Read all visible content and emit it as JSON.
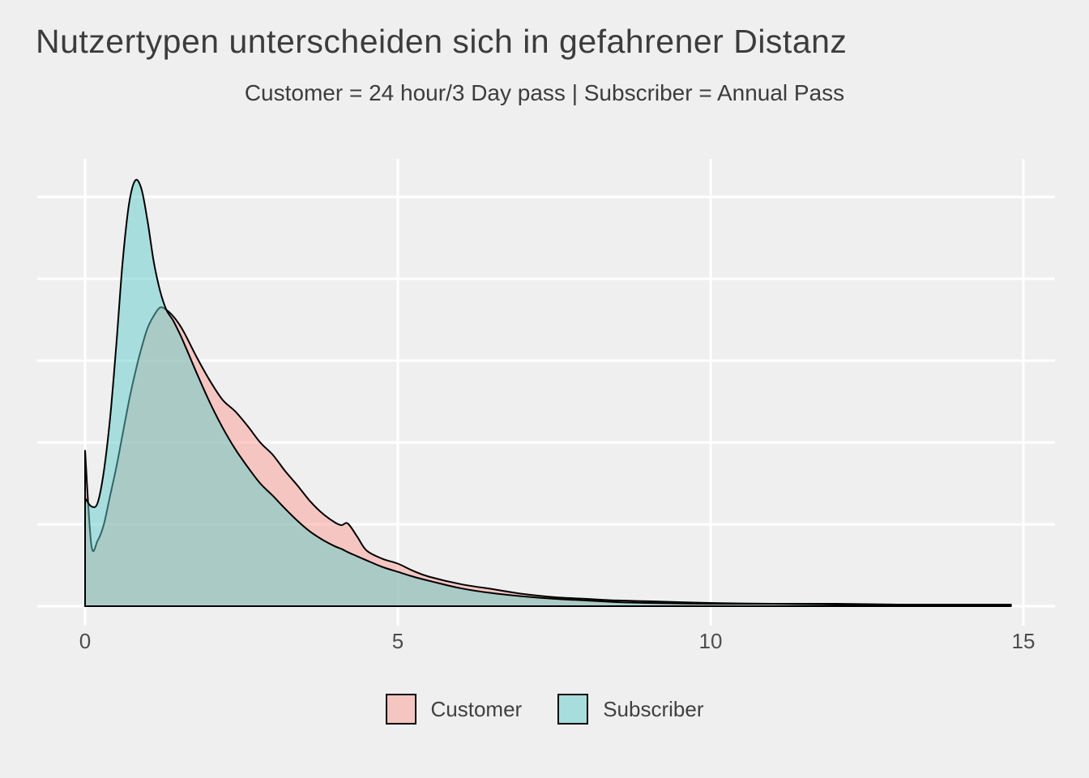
{
  "colors": {
    "background": "#EFEFEF",
    "grid": "#FFFFFF",
    "outline": "#000000",
    "title_text": "#3C3C3C",
    "axis_text": "#4D4D4D",
    "customer_fill": "rgba(251,157,148,0.5)",
    "subscriber_fill": "rgba(95,206,203,0.5)"
  },
  "chart_data": {
    "type": "area",
    "title": "Nutzertypen unterscheiden sich in gefahrener Distanz",
    "subtitle": "Customer = 24 hour/3 Day pass  | Subscriber = Annual Pass",
    "xlabel": "",
    "ylabel": "",
    "xlim": [
      0,
      15
    ],
    "x_ticks": [
      0,
      5,
      10,
      15
    ],
    "ylim": [
      0,
      0.55
    ],
    "y_gridlines": [
      0,
      0.1,
      0.2,
      0.3,
      0.4,
      0.5
    ],
    "grid": "on",
    "legend_position": "bottom",
    "x": [
      0,
      0.1,
      0.2,
      0.3,
      0.4,
      0.5,
      0.6,
      0.7,
      0.8,
      0.9,
      1.0,
      1.1,
      1.2,
      1.3,
      1.4,
      1.5,
      1.6,
      1.8,
      2.0,
      2.2,
      2.4,
      2.6,
      2.8,
      3.0,
      3.2,
      3.4,
      3.6,
      3.8,
      4.0,
      4.1,
      4.2,
      4.35,
      4.5,
      4.75,
      5.0,
      5.25,
      5.5,
      6.0,
      6.5,
      7.0,
      7.5,
      8.0,
      8.5,
      9.0,
      10.0,
      11.0,
      12.0,
      13.0,
      14.0,
      14.8
    ],
    "series": [
      {
        "name": "Customer",
        "fill_key": "customer_fill",
        "values": [
          0.19,
          0.075,
          0.08,
          0.1,
          0.135,
          0.17,
          0.21,
          0.25,
          0.285,
          0.315,
          0.34,
          0.355,
          0.365,
          0.362,
          0.355,
          0.345,
          0.332,
          0.302,
          0.275,
          0.252,
          0.238,
          0.22,
          0.2,
          0.185,
          0.165,
          0.147,
          0.128,
          0.113,
          0.102,
          0.099,
          0.101,
          0.085,
          0.068,
          0.058,
          0.052,
          0.043,
          0.036,
          0.027,
          0.021,
          0.015,
          0.011,
          0.009,
          0.007,
          0.006,
          0.004,
          0.003,
          0.003,
          0.002,
          0.002,
          0.002
        ]
      },
      {
        "name": "Subscriber",
        "fill_key": "subscriber_fill",
        "values": [
          0.132,
          0.122,
          0.126,
          0.165,
          0.23,
          0.32,
          0.42,
          0.49,
          0.52,
          0.51,
          0.47,
          0.42,
          0.385,
          0.362,
          0.35,
          0.335,
          0.318,
          0.282,
          0.248,
          0.218,
          0.192,
          0.17,
          0.15,
          0.135,
          0.119,
          0.104,
          0.091,
          0.081,
          0.073,
          0.07,
          0.066,
          0.061,
          0.056,
          0.048,
          0.042,
          0.036,
          0.031,
          0.022,
          0.016,
          0.012,
          0.009,
          0.007,
          0.005,
          0.004,
          0.003,
          0.003,
          0.002,
          0.002,
          0.002,
          0.002
        ]
      }
    ]
  }
}
